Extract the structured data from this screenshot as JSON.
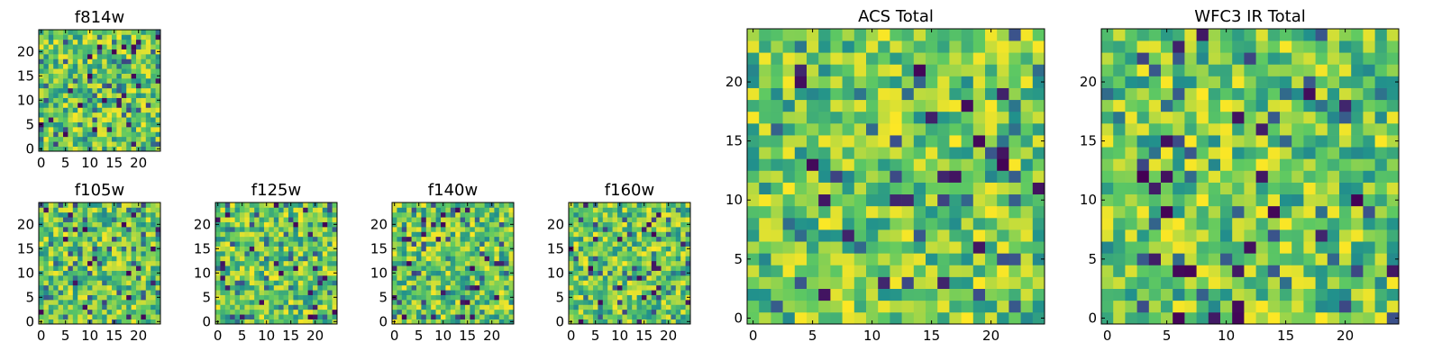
{
  "figure": {
    "colormap": "viridis",
    "colormap_stops": [
      "#440154",
      "#3b528b",
      "#21918c",
      "#5ec962",
      "#fde725"
    ]
  },
  "chart_data": [
    {
      "type": "heatmap",
      "id": "f814w",
      "title": "f814w",
      "grid": [
        25,
        25
      ],
      "xlim": [
        0,
        25
      ],
      "ylim": [
        0,
        25
      ],
      "xticks": [
        0,
        5,
        10,
        15,
        20
      ],
      "yticks": [
        0,
        5,
        10,
        15,
        20
      ],
      "value_range": [
        0,
        1
      ],
      "seed": 814,
      "xlabel": "",
      "ylabel": ""
    },
    {
      "type": "heatmap",
      "id": "f105w",
      "title": "f105w",
      "grid": [
        25,
        25
      ],
      "xlim": [
        0,
        25
      ],
      "ylim": [
        0,
        25
      ],
      "xticks": [
        0,
        5,
        10,
        15,
        20
      ],
      "yticks": [
        0,
        5,
        10,
        15,
        20
      ],
      "value_range": [
        0,
        1
      ],
      "seed": 105,
      "xlabel": "",
      "ylabel": ""
    },
    {
      "type": "heatmap",
      "id": "f125w",
      "title": "f125w",
      "grid": [
        25,
        25
      ],
      "xlim": [
        0,
        25
      ],
      "ylim": [
        0,
        25
      ],
      "xticks": [
        0,
        5,
        10,
        15,
        20
      ],
      "yticks": [
        0,
        5,
        10,
        15,
        20
      ],
      "value_range": [
        0,
        1
      ],
      "seed": 125,
      "xlabel": "",
      "ylabel": ""
    },
    {
      "type": "heatmap",
      "id": "f140w",
      "title": "f140w",
      "grid": [
        25,
        25
      ],
      "xlim": [
        0,
        25
      ],
      "ylim": [
        0,
        25
      ],
      "xticks": [
        0,
        5,
        10,
        15,
        20
      ],
      "yticks": [
        0,
        5,
        10,
        15,
        20
      ],
      "value_range": [
        0,
        1
      ],
      "seed": 140,
      "xlabel": "",
      "ylabel": ""
    },
    {
      "type": "heatmap",
      "id": "f160w",
      "title": "f160w",
      "grid": [
        25,
        25
      ],
      "xlim": [
        0,
        25
      ],
      "ylim": [
        0,
        25
      ],
      "xticks": [
        0,
        5,
        10,
        15,
        20
      ],
      "yticks": [
        0,
        5,
        10,
        15,
        20
      ],
      "value_range": [
        0,
        1
      ],
      "seed": 160,
      "xlabel": "",
      "ylabel": ""
    },
    {
      "type": "heatmap",
      "id": "acs_total",
      "title": "ACS Total",
      "grid": [
        25,
        25
      ],
      "xlim": [
        0,
        25
      ],
      "ylim": [
        0,
        25
      ],
      "xticks": [
        0,
        5,
        10,
        15,
        20
      ],
      "yticks": [
        0,
        5,
        10,
        15,
        20
      ],
      "value_range": [
        0,
        1
      ],
      "seed": 3001,
      "xlabel": "",
      "ylabel": ""
    },
    {
      "type": "heatmap",
      "id": "wfc3_ir_total",
      "title": "WFC3 IR Total",
      "grid": [
        25,
        25
      ],
      "xlim": [
        0,
        25
      ],
      "ylim": [
        0,
        25
      ],
      "xticks": [
        0,
        5,
        10,
        15,
        20
      ],
      "yticks": [
        0,
        5,
        10,
        15,
        20
      ],
      "value_range": [
        0,
        1
      ],
      "seed": 4001,
      "xlabel": "",
      "ylabel": ""
    }
  ]
}
